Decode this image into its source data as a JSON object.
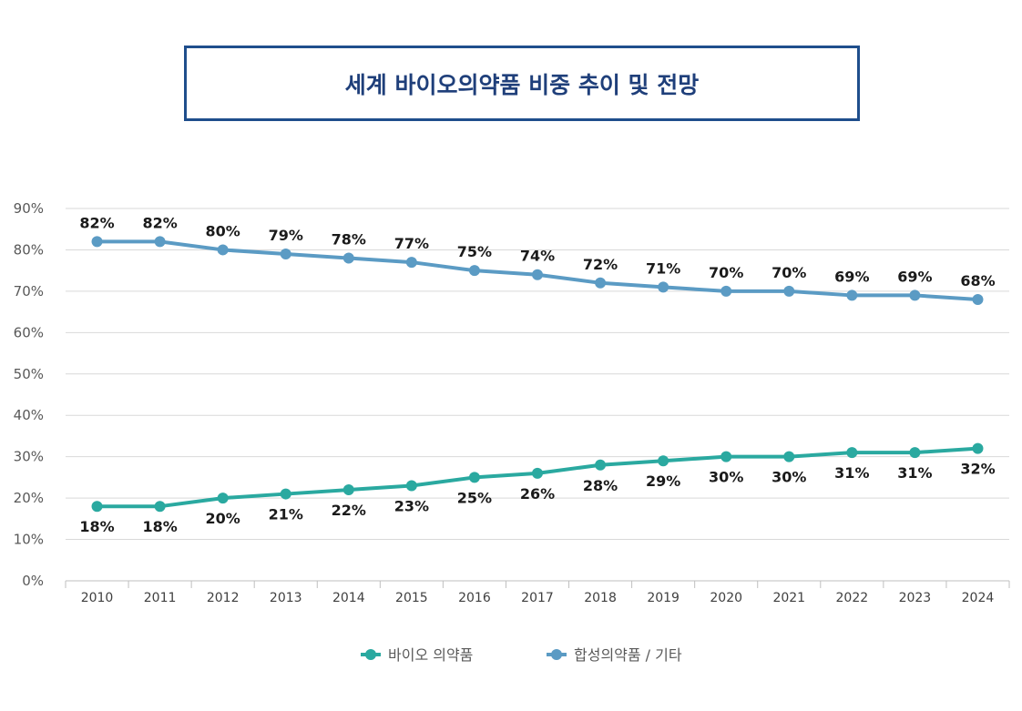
{
  "chart_data": {
    "type": "line",
    "title": "세계 바이오의약품 비중 추이 및 전망",
    "categories": [
      "2010",
      "2011",
      "2012",
      "2013",
      "2014",
      "2015",
      "2016",
      "2017",
      "2018",
      "2019",
      "2020",
      "2021",
      "2022",
      "2023",
      "2024"
    ],
    "series": [
      {
        "name": "바이오 의약품",
        "color": "#2aa9a0",
        "values": [
          18,
          18,
          20,
          21,
          22,
          23,
          25,
          26,
          28,
          29,
          30,
          30,
          31,
          31,
          32
        ]
      },
      {
        "name": "합성의약품 / 기타",
        "color": "#5b9bc4",
        "values": [
          82,
          82,
          80,
          79,
          78,
          77,
          75,
          74,
          72,
          71,
          70,
          70,
          69,
          69,
          68
        ]
      }
    ],
    "ylim": [
      0,
      90
    ],
    "yticks": [
      "0%",
      "10%",
      "20%",
      "30%",
      "40%",
      "50%",
      "60%",
      "70%",
      "80%",
      "90%"
    ],
    "value_suffix": "%",
    "grid": true,
    "legend": "bottom"
  }
}
